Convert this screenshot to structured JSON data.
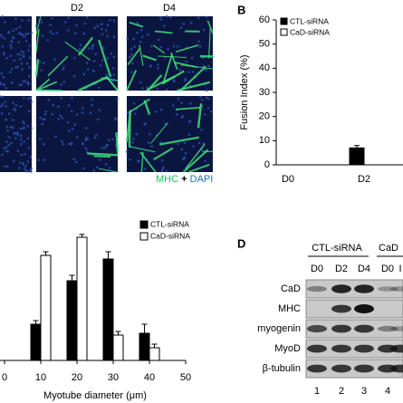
{
  "panel_a": {
    "columns": [
      "D2",
      "D4"
    ],
    "stain": {
      "marker": "MHC",
      "plus": "+",
      "nuclei": "DAPI"
    }
  },
  "chart_data": [
    {
      "type": "bar",
      "label": "B",
      "y_label": "Fusion Index (%)",
      "categories": [
        "D0",
        "D2"
      ],
      "series": [
        {
          "name": "CTL-siRNA",
          "color": "#000000",
          "values": [
            0,
            7
          ],
          "errors": [
            null,
            1
          ]
        },
        {
          "name": "CaD-siRNA",
          "color": "#ffffff",
          "values": [
            0,
            null
          ],
          "errors": [
            null,
            null
          ]
        }
      ],
      "ylim": [
        0,
        60
      ],
      "yticks": [
        0,
        10,
        20,
        30,
        40,
        50,
        60
      ]
    },
    {
      "type": "bar",
      "x_label": "Myotube diameter (μm)",
      "x": [
        10,
        20,
        30,
        40
      ],
      "series": [
        {
          "name": "CTL-siRNA",
          "color": "#000000",
          "values": [
            10,
            22,
            28,
            7.5
          ],
          "errors": [
            1,
            1.5,
            2,
            2.5
          ]
        },
        {
          "name": "CaD-siRNA",
          "color": "#ffffff",
          "values": [
            29,
            34,
            7,
            3.5
          ],
          "errors": [
            1,
            0.8,
            1,
            1
          ]
        }
      ],
      "xlim": [
        0,
        50
      ],
      "xticks": [
        0,
        10,
        20,
        30,
        40,
        50
      ],
      "ylim": [
        0,
        40
      ]
    }
  ],
  "panel_d": {
    "label": "D",
    "groups": [
      "CTL-siRNA",
      "CaD"
    ],
    "lanes": [
      "D0",
      "D2",
      "D4",
      "D0",
      "I"
    ],
    "rows": [
      "CaD",
      "MHC",
      "myogenin",
      "MyoD",
      "β-tubulin"
    ],
    "lane_numbers": [
      1,
      2,
      3,
      4
    ]
  }
}
